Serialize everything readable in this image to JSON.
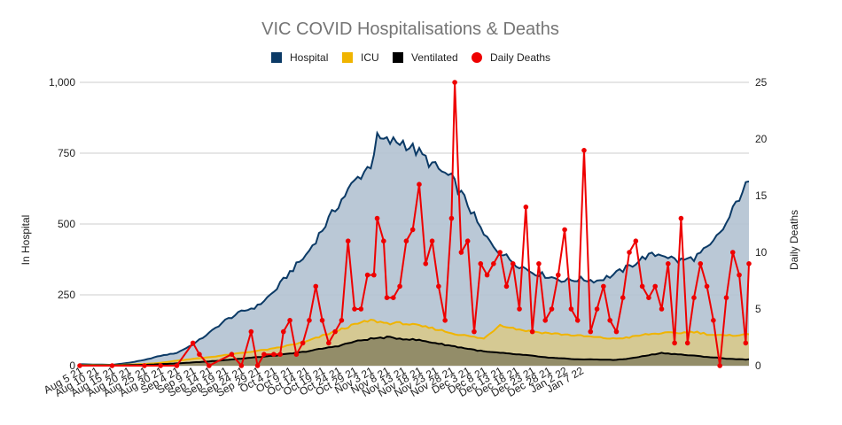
{
  "chart_data": {
    "type": "area",
    "title": "VIC COVID Hospitalisations & Deaths",
    "ylabel": "In Hospital",
    "y2label": "Daily Deaths",
    "ylim": [
      0,
      1000
    ],
    "y2lim": [
      0,
      25
    ],
    "yticks": [
      "0",
      "250",
      "500",
      "750",
      "1,000"
    ],
    "y2ticks": [
      "0",
      "5",
      "10",
      "15",
      "20",
      "25"
    ],
    "legend_position": "top",
    "grid": true,
    "xticks": [
      "Aug 5 21",
      "Aug 10 21",
      "Aug 15 21",
      "Aug 20 21",
      "Aug 25 21",
      "Aug 30 21",
      "Sep 4 21",
      "Sep 9 21",
      "Sep 14 21",
      "Sep 19 21",
      "Sep 24 21",
      "Sep 29 21",
      "Oct 4 21",
      "Oct 9 21",
      "Oct 14 21",
      "Oct 19 21",
      "Oct 24 21",
      "Oct 29 21",
      "Nov 3 21",
      "Nov 8 21",
      "Nov 13 21",
      "Nov 18 21",
      "Nov 23 21",
      "Nov 28 21",
      "Dec 3 21",
      "Dec 8 21",
      "Dec 13 21",
      "Dec 18 21",
      "Dec 23 21",
      "Dec 28 21",
      "Jan 2 22",
      "Jan 7 22"
    ],
    "series": [
      {
        "name": "Hospital",
        "kind": "area",
        "axis": "left",
        "color": "#0b3a66",
        "fill": "#b3c2d1",
        "keypoints": [
          [
            0,
            5
          ],
          [
            10,
            3
          ],
          [
            15,
            10
          ],
          [
            20,
            20
          ],
          [
            25,
            35
          ],
          [
            30,
            45
          ],
          [
            35,
            75
          ],
          [
            40,
            115
          ],
          [
            45,
            160
          ],
          [
            50,
            190
          ],
          [
            55,
            210
          ],
          [
            60,
            260
          ],
          [
            65,
            330
          ],
          [
            70,
            390
          ],
          [
            75,
            480
          ],
          [
            80,
            570
          ],
          [
            85,
            650
          ],
          [
            90,
            710
          ],
          [
            92,
            800
          ],
          [
            95,
            790
          ],
          [
            100,
            790
          ],
          [
            105,
            750
          ],
          [
            110,
            700
          ],
          [
            115,
            660
          ],
          [
            120,
            570
          ],
          [
            125,
            460
          ],
          [
            130,
            400
          ],
          [
            135,
            360
          ],
          [
            140,
            330
          ],
          [
            145,
            315
          ],
          [
            150,
            300
          ],
          [
            155,
            305
          ],
          [
            160,
            300
          ],
          [
            165,
            320
          ],
          [
            170,
            350
          ],
          [
            175,
            385
          ],
          [
            180,
            395
          ],
          [
            185,
            370
          ],
          [
            190,
            380
          ],
          [
            195,
            420
          ],
          [
            200,
            500
          ],
          [
            205,
            620
          ],
          [
            207,
            645
          ]
        ]
      },
      {
        "name": "ICU",
        "kind": "area",
        "axis": "left",
        "color": "#f0b400",
        "fill": "#d8c98c",
        "keypoints": [
          [
            0,
            2
          ],
          [
            10,
            2
          ],
          [
            20,
            6
          ],
          [
            25,
            10
          ],
          [
            30,
            18
          ],
          [
            40,
            30
          ],
          [
            50,
            45
          ],
          [
            60,
            60
          ],
          [
            70,
            85
          ],
          [
            80,
            125
          ],
          [
            85,
            145
          ],
          [
            90,
            160
          ],
          [
            95,
            150
          ],
          [
            100,
            150
          ],
          [
            105,
            140
          ],
          [
            110,
            130
          ],
          [
            115,
            115
          ],
          [
            120,
            105
          ],
          [
            125,
            95
          ],
          [
            130,
            145
          ],
          [
            135,
            130
          ],
          [
            140,
            120
          ],
          [
            145,
            115
          ],
          [
            150,
            110
          ],
          [
            155,
            105
          ],
          [
            160,
            100
          ],
          [
            165,
            95
          ],
          [
            170,
            100
          ],
          [
            175,
            110
          ],
          [
            180,
            115
          ],
          [
            185,
            115
          ],
          [
            190,
            120
          ],
          [
            195,
            110
          ],
          [
            200,
            105
          ],
          [
            205,
            110
          ],
          [
            207,
            110
          ]
        ]
      },
      {
        "name": "Ventilated",
        "kind": "area",
        "axis": "left",
        "color": "#000000",
        "fill": "#8c8665",
        "keypoints": [
          [
            0,
            1
          ],
          [
            10,
            1
          ],
          [
            20,
            3
          ],
          [
            30,
            8
          ],
          [
            40,
            15
          ],
          [
            50,
            25
          ],
          [
            60,
            35
          ],
          [
            70,
            50
          ],
          [
            80,
            70
          ],
          [
            85,
            85
          ],
          [
            90,
            95
          ],
          [
            95,
            100
          ],
          [
            100,
            95
          ],
          [
            105,
            90
          ],
          [
            110,
            80
          ],
          [
            115,
            70
          ],
          [
            120,
            60
          ],
          [
            125,
            50
          ],
          [
            130,
            45
          ],
          [
            135,
            40
          ],
          [
            140,
            35
          ],
          [
            145,
            28
          ],
          [
            150,
            25
          ],
          [
            155,
            22
          ],
          [
            160,
            22
          ],
          [
            165,
            20
          ],
          [
            170,
            25
          ],
          [
            175,
            35
          ],
          [
            180,
            45
          ],
          [
            185,
            40
          ],
          [
            190,
            35
          ],
          [
            195,
            30
          ],
          [
            200,
            25
          ],
          [
            205,
            22
          ],
          [
            207,
            22
          ]
        ]
      },
      {
        "name": "Daily Deaths",
        "kind": "line",
        "axis": "right",
        "color": "#ee0000",
        "fill": "#ee0000",
        "keypoints": [
          [
            0,
            0
          ],
          [
            10,
            0
          ],
          [
            20,
            0
          ],
          [
            25,
            0
          ],
          [
            30,
            0
          ],
          [
            35,
            2
          ],
          [
            37,
            1
          ],
          [
            40,
            0
          ],
          [
            47,
            1
          ],
          [
            50,
            0
          ],
          [
            53,
            3
          ],
          [
            55,
            0
          ],
          [
            57,
            1
          ],
          [
            60,
            1
          ],
          [
            62,
            1
          ],
          [
            63,
            3
          ],
          [
            65,
            4
          ],
          [
            67,
            1
          ],
          [
            69,
            2
          ],
          [
            71,
            4
          ],
          [
            73,
            7
          ],
          [
            75,
            4
          ],
          [
            77,
            2
          ],
          [
            79,
            3
          ],
          [
            81,
            4
          ],
          [
            83,
            11
          ],
          [
            85,
            5
          ],
          [
            87,
            5
          ],
          [
            89,
            8
          ],
          [
            91,
            8
          ],
          [
            92,
            13
          ],
          [
            94,
            11
          ],
          [
            95,
            6
          ],
          [
            97,
            6
          ],
          [
            99,
            7
          ],
          [
            101,
            11
          ],
          [
            103,
            12
          ],
          [
            105,
            16
          ],
          [
            107,
            9
          ],
          [
            109,
            11
          ],
          [
            111,
            7
          ],
          [
            113,
            4
          ],
          [
            115,
            13
          ],
          [
            116,
            25
          ],
          [
            118,
            10
          ],
          [
            120,
            11
          ],
          [
            122,
            3
          ],
          [
            124,
            9
          ],
          [
            126,
            8
          ],
          [
            128,
            9
          ],
          [
            130,
            10
          ],
          [
            132,
            7
          ],
          [
            134,
            9
          ],
          [
            136,
            5
          ],
          [
            138,
            14
          ],
          [
            140,
            3
          ],
          [
            142,
            9
          ],
          [
            144,
            4
          ],
          [
            146,
            5
          ],
          [
            148,
            8
          ],
          [
            150,
            12
          ],
          [
            152,
            5
          ],
          [
            154,
            4
          ],
          [
            156,
            19
          ],
          [
            158,
            3
          ],
          [
            160,
            5
          ],
          [
            162,
            7
          ],
          [
            164,
            4
          ],
          [
            166,
            3
          ],
          [
            168,
            6
          ],
          [
            170,
            10
          ],
          [
            172,
            11
          ],
          [
            174,
            7
          ],
          [
            176,
            6
          ],
          [
            178,
            7
          ],
          [
            180,
            5
          ],
          [
            182,
            9
          ],
          [
            184,
            2
          ],
          [
            186,
            13
          ],
          [
            188,
            2
          ],
          [
            190,
            6
          ],
          [
            192,
            9
          ],
          [
            194,
            7
          ],
          [
            196,
            4
          ],
          [
            198,
            0
          ],
          [
            200,
            6
          ],
          [
            202,
            10
          ],
          [
            204,
            8
          ],
          [
            206,
            2
          ],
          [
            207,
            9
          ]
        ]
      }
    ]
  }
}
